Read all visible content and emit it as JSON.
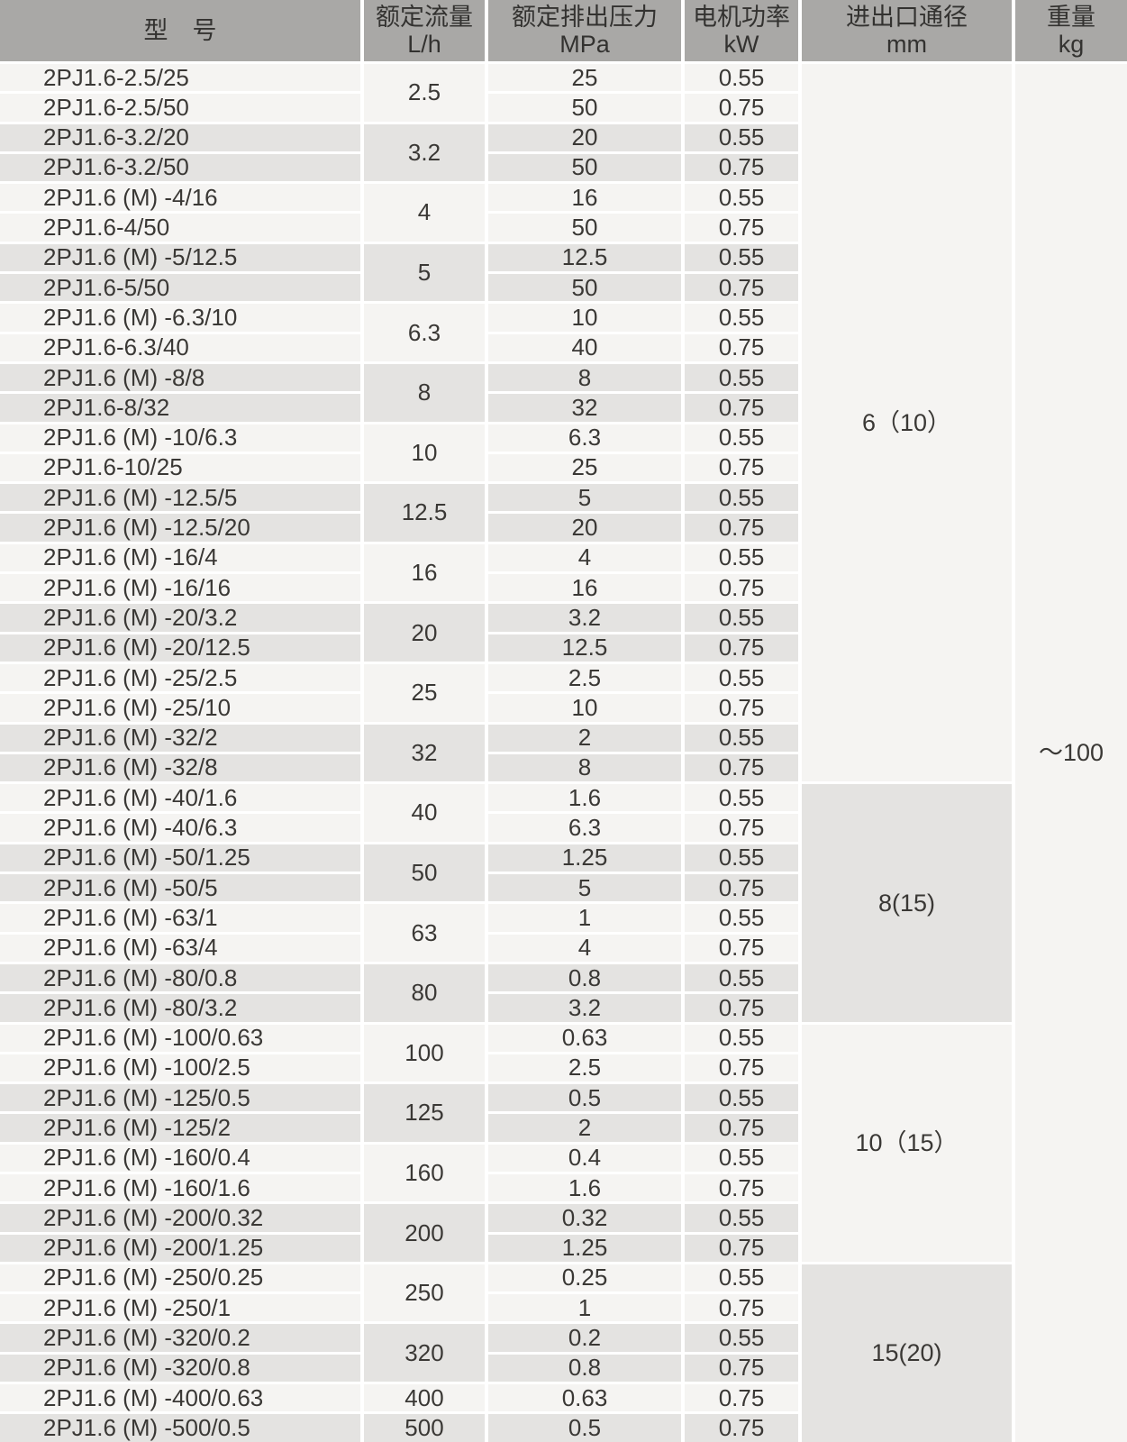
{
  "table": {
    "headers": [
      {
        "line1": "型　号",
        "line2": ""
      },
      {
        "line1": "额定流量",
        "line2": "L/h"
      },
      {
        "line1": "额定排出压力",
        "line2": "MPa"
      },
      {
        "line1": "电机功率",
        "line2": "kW"
      },
      {
        "line1": "进出口通径",
        "line2": "mm"
      },
      {
        "line1": "重量",
        "line2": "kg"
      }
    ],
    "weight_value": "～100",
    "diameter_groups": [
      {
        "label": "6（10）",
        "row_span": 24
      },
      {
        "label": "8(15)",
        "row_span": 8
      },
      {
        "label": "10（15）",
        "row_span": 8
      },
      {
        "label": "15(20)",
        "row_span": 6
      }
    ],
    "groups": [
      {
        "flow": "2.5",
        "rows": [
          {
            "model": "2PJ1.6-2.5/25",
            "pressure": "25",
            "power": "0.55"
          },
          {
            "model": "2PJ1.6-2.5/50",
            "pressure": "50",
            "power": "0.75"
          }
        ]
      },
      {
        "flow": "3.2",
        "rows": [
          {
            "model": "2PJ1.6-3.2/20",
            "pressure": "20",
            "power": "0.55"
          },
          {
            "model": "2PJ1.6-3.2/50",
            "pressure": "50",
            "power": "0.75"
          }
        ]
      },
      {
        "flow": "4",
        "rows": [
          {
            "model": "2PJ1.6 (M) -4/16",
            "pressure": "16",
            "power": "0.55"
          },
          {
            "model": "2PJ1.6-4/50",
            "pressure": "50",
            "power": "0.75"
          }
        ]
      },
      {
        "flow": "5",
        "rows": [
          {
            "model": "2PJ1.6 (M) -5/12.5",
            "pressure": "12.5",
            "power": "0.55"
          },
          {
            "model": "2PJ1.6-5/50",
            "pressure": "50",
            "power": "0.75"
          }
        ]
      },
      {
        "flow": "6.3",
        "rows": [
          {
            "model": "2PJ1.6 (M) -6.3/10",
            "pressure": "10",
            "power": "0.55"
          },
          {
            "model": "2PJ1.6-6.3/40",
            "pressure": "40",
            "power": "0.75"
          }
        ]
      },
      {
        "flow": "8",
        "rows": [
          {
            "model": "2PJ1.6 (M) -8/8",
            "pressure": "8",
            "power": "0.55"
          },
          {
            "model": "2PJ1.6-8/32",
            "pressure": "32",
            "power": "0.75"
          }
        ]
      },
      {
        "flow": "10",
        "rows": [
          {
            "model": "2PJ1.6 (M) -10/6.3",
            "pressure": "6.3",
            "power": "0.55"
          },
          {
            "model": "2PJ1.6-10/25",
            "pressure": "25",
            "power": "0.75"
          }
        ]
      },
      {
        "flow": "12.5",
        "rows": [
          {
            "model": "2PJ1.6 (M) -12.5/5",
            "pressure": "5",
            "power": "0.55"
          },
          {
            "model": "2PJ1.6 (M) -12.5/20",
            "pressure": "20",
            "power": "0.75"
          }
        ]
      },
      {
        "flow": "16",
        "rows": [
          {
            "model": "2PJ1.6 (M) -16/4",
            "pressure": "4",
            "power": "0.55"
          },
          {
            "model": "2PJ1.6 (M) -16/16",
            "pressure": "16",
            "power": "0.75"
          }
        ]
      },
      {
        "flow": "20",
        "rows": [
          {
            "model": "2PJ1.6 (M) -20/3.2",
            "pressure": "3.2",
            "power": "0.55"
          },
          {
            "model": "2PJ1.6 (M) -20/12.5",
            "pressure": "12.5",
            "power": "0.75"
          }
        ]
      },
      {
        "flow": "25",
        "rows": [
          {
            "model": "2PJ1.6 (M) -25/2.5",
            "pressure": "2.5",
            "power": "0.55"
          },
          {
            "model": "2PJ1.6 (M) -25/10",
            "pressure": "10",
            "power": "0.75"
          }
        ]
      },
      {
        "flow": "32",
        "rows": [
          {
            "model": "2PJ1.6 (M) -32/2",
            "pressure": "2",
            "power": "0.55"
          },
          {
            "model": "2PJ1.6 (M) -32/8",
            "pressure": "8",
            "power": "0.75"
          }
        ]
      },
      {
        "flow": "40",
        "rows": [
          {
            "model": "2PJ1.6 (M) -40/1.6",
            "pressure": "1.6",
            "power": "0.55"
          },
          {
            "model": "2PJ1.6 (M) -40/6.3",
            "pressure": "6.3",
            "power": "0.75"
          }
        ]
      },
      {
        "flow": "50",
        "rows": [
          {
            "model": "2PJ1.6 (M) -50/1.25",
            "pressure": "1.25",
            "power": "0.55"
          },
          {
            "model": "2PJ1.6 (M) -50/5",
            "pressure": "5",
            "power": "0.75"
          }
        ]
      },
      {
        "flow": "63",
        "rows": [
          {
            "model": "2PJ1.6 (M) -63/1",
            "pressure": "1",
            "power": "0.55"
          },
          {
            "model": "2PJ1.6 (M) -63/4",
            "pressure": "4",
            "power": "0.75"
          }
        ]
      },
      {
        "flow": "80",
        "rows": [
          {
            "model": "2PJ1.6 (M) -80/0.8",
            "pressure": "0.8",
            "power": "0.55"
          },
          {
            "model": "2PJ1.6 (M) -80/3.2",
            "pressure": "3.2",
            "power": "0.75"
          }
        ]
      },
      {
        "flow": "100",
        "rows": [
          {
            "model": "2PJ1.6 (M) -100/0.63",
            "pressure": "0.63",
            "power": "0.55"
          },
          {
            "model": "2PJ1.6 (M) -100/2.5",
            "pressure": "2.5",
            "power": "0.75"
          }
        ]
      },
      {
        "flow": "125",
        "rows": [
          {
            "model": "2PJ1.6 (M) -125/0.5",
            "pressure": "0.5",
            "power": "0.55"
          },
          {
            "model": "2PJ1.6 (M) -125/2",
            "pressure": "2",
            "power": "0.75"
          }
        ]
      },
      {
        "flow": "160",
        "rows": [
          {
            "model": "2PJ1.6 (M) -160/0.4",
            "pressure": "0.4",
            "power": "0.55"
          },
          {
            "model": "2PJ1.6 (M) -160/1.6",
            "pressure": "1.6",
            "power": "0.75"
          }
        ]
      },
      {
        "flow": "200",
        "rows": [
          {
            "model": "2PJ1.6 (M) -200/0.32",
            "pressure": "0.32",
            "power": "0.55"
          },
          {
            "model": "2PJ1.6 (M) -200/1.25",
            "pressure": "1.25",
            "power": "0.75"
          }
        ]
      },
      {
        "flow": "250",
        "rows": [
          {
            "model": "2PJ1.6 (M) -250/0.25",
            "pressure": "0.25",
            "power": "0.55"
          },
          {
            "model": "2PJ1.6 (M) -250/1",
            "pressure": "1",
            "power": "0.75"
          }
        ]
      },
      {
        "flow": "320",
        "rows": [
          {
            "model": "2PJ1.6 (M) -320/0.2",
            "pressure": "0.2",
            "power": "0.55"
          },
          {
            "model": "2PJ1.6 (M) -320/0.8",
            "pressure": "0.8",
            "power": "0.75"
          }
        ]
      },
      {
        "flow": "400",
        "rows": [
          {
            "model": "2PJ1.6 (M) -400/0.63",
            "pressure": "0.63",
            "power": "0.75"
          }
        ]
      },
      {
        "flow": "500",
        "rows": [
          {
            "model": "2PJ1.6 (M) -500/0.5",
            "pressure": "0.5",
            "power": "0.75"
          }
        ]
      }
    ],
    "colors": {
      "header_bg": "#a9a8a6",
      "row_light": "#f5f4f2",
      "row_gray": "#e4e3e1",
      "text": "#3a3835",
      "separator": "#ffffff"
    }
  }
}
